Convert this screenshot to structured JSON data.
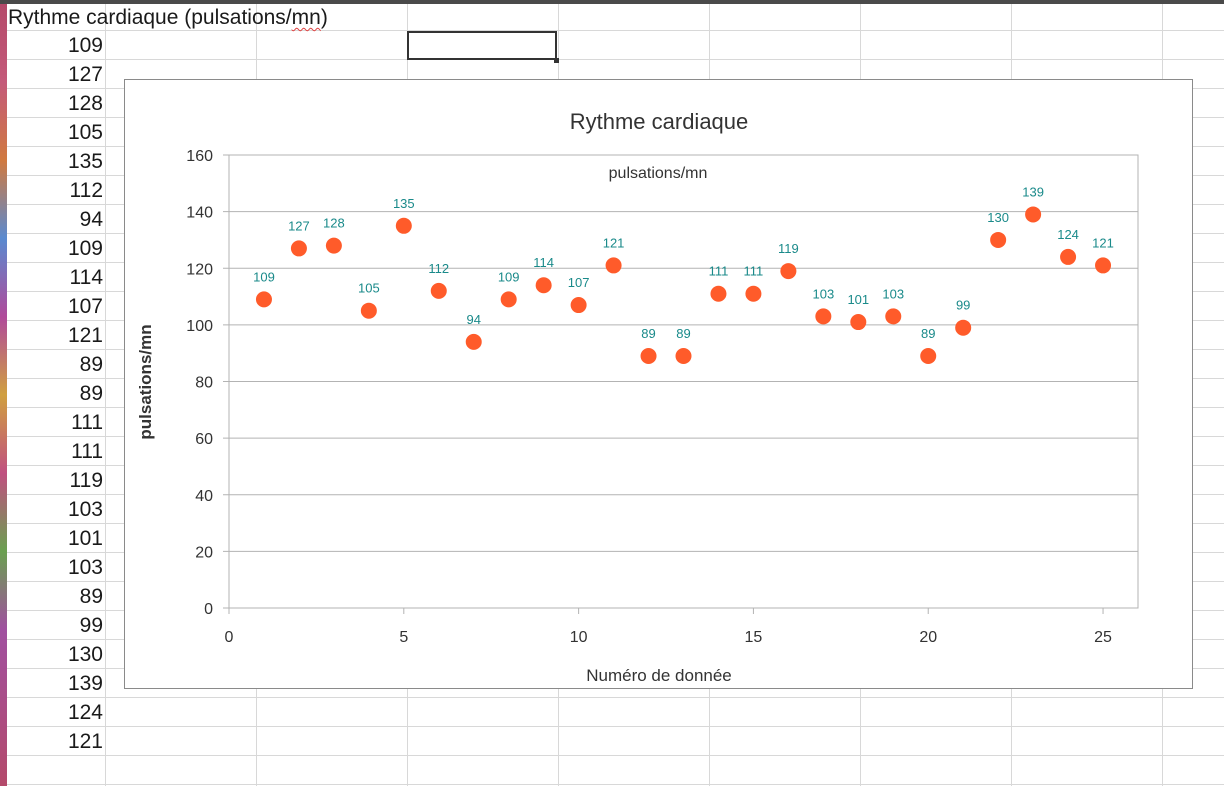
{
  "spreadsheet": {
    "header": "Rythme cardiaque (pulsations/",
    "header_underlined": "mn",
    "header_close": ")",
    "values": [
      "109",
      "127",
      "128",
      "105",
      "135",
      "112",
      "94",
      "109",
      "114",
      "107",
      "121",
      "89",
      "89",
      "111",
      "111",
      "119",
      "103",
      "101",
      "103",
      "89",
      "99",
      "130",
      "139",
      "124",
      "121"
    ]
  },
  "chart_data": {
    "type": "scatter",
    "title": "Rythme cardiaque",
    "xlabel": "Numéro de donnée",
    "ylabel": "pulsations/mn",
    "legend": "pulsations/mn",
    "legend_position": "top-center",
    "x": [
      1,
      2,
      3,
      4,
      5,
      6,
      7,
      8,
      9,
      10,
      11,
      12,
      13,
      14,
      15,
      16,
      17,
      18,
      19,
      20,
      21,
      22,
      23,
      24,
      25
    ],
    "y": [
      109,
      127,
      128,
      105,
      135,
      112,
      94,
      109,
      114,
      107,
      121,
      89,
      89,
      111,
      111,
      119,
      103,
      101,
      103,
      89,
      99,
      130,
      139,
      124,
      121
    ],
    "xlim": [
      0,
      26
    ],
    "ylim": [
      0,
      160
    ],
    "xticks": [
      0,
      5,
      10,
      15,
      20,
      25
    ],
    "yticks": [
      0,
      20,
      40,
      60,
      80,
      100,
      120,
      140,
      160
    ],
    "grid": "horizontal",
    "marker_color": "#ff5b2a",
    "label_color": "#1a8a8a"
  }
}
